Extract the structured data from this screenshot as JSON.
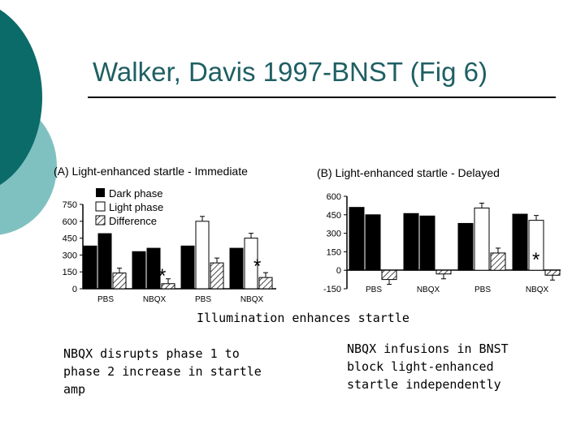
{
  "slide": {
    "title": "Walker, Davis 1997-BNST (Fig 6)",
    "caption": "Illumination enhances startle",
    "note_left": "NBQX disrupts phase 1 to phase 2 increase in startle amp",
    "note_right": "NBQX infusions in BNST block light-enhanced startle independently",
    "colors": {
      "accent_dark": "#0b6b69",
      "accent_light": "#7fc1c0",
      "title": "#1f5f63"
    }
  },
  "chart_data": [
    {
      "type": "bar",
      "title": "(A) Light-enhanced startle - Immediate",
      "xlabel": "",
      "ylabel": "",
      "ylim": [
        0,
        750
      ],
      "yticks": [
        "0",
        "150",
        "300",
        "450",
        "600",
        "750"
      ],
      "categories": [
        "PBS",
        "NBQX",
        "PBS",
        "NBQX"
      ],
      "legend": [
        "Dark phase",
        "Light phase",
        "Difference"
      ],
      "legend_position": "top-left",
      "groups": [
        {
          "category": "PBS",
          "dark": [
            380,
            490
          ],
          "light": [],
          "difference": [
            140
          ]
        },
        {
          "category": "NBQX",
          "dark": [
            330,
            360
          ],
          "light": [],
          "difference": [
            45
          ]
        },
        {
          "category": "PBS",
          "dark": [
            380
          ],
          "light": [
            600
          ],
          "difference": [
            230
          ]
        },
        {
          "category": "NBQX",
          "dark": [
            360
          ],
          "light": [
            450
          ],
          "difference": [
            100
          ]
        }
      ],
      "annotations": [
        "*",
        "*"
      ]
    },
    {
      "type": "bar",
      "title": "(B) Light-enhanced startle - Delayed",
      "xlabel": "",
      "ylabel": "",
      "ylim": [
        -150,
        600
      ],
      "yticks": [
        "-150",
        "0",
        "150",
        "300",
        "450",
        "600"
      ],
      "categories": [
        "PBS",
        "NBQX",
        "PBS",
        "NBQX"
      ],
      "groups": [
        {
          "category": "PBS",
          "dark": [
            510,
            450
          ],
          "light": [],
          "difference": [
            -75
          ]
        },
        {
          "category": "NBQX",
          "dark": [
            460,
            440
          ],
          "light": [],
          "difference": [
            -30
          ]
        },
        {
          "category": "PBS",
          "dark": [
            380
          ],
          "light": [
            505
          ],
          "difference": [
            140
          ]
        },
        {
          "category": "NBQX",
          "dark": [
            455
          ],
          "light": [
            405
          ],
          "difference": [
            -40
          ]
        }
      ],
      "annotations": [
        "*"
      ]
    }
  ]
}
